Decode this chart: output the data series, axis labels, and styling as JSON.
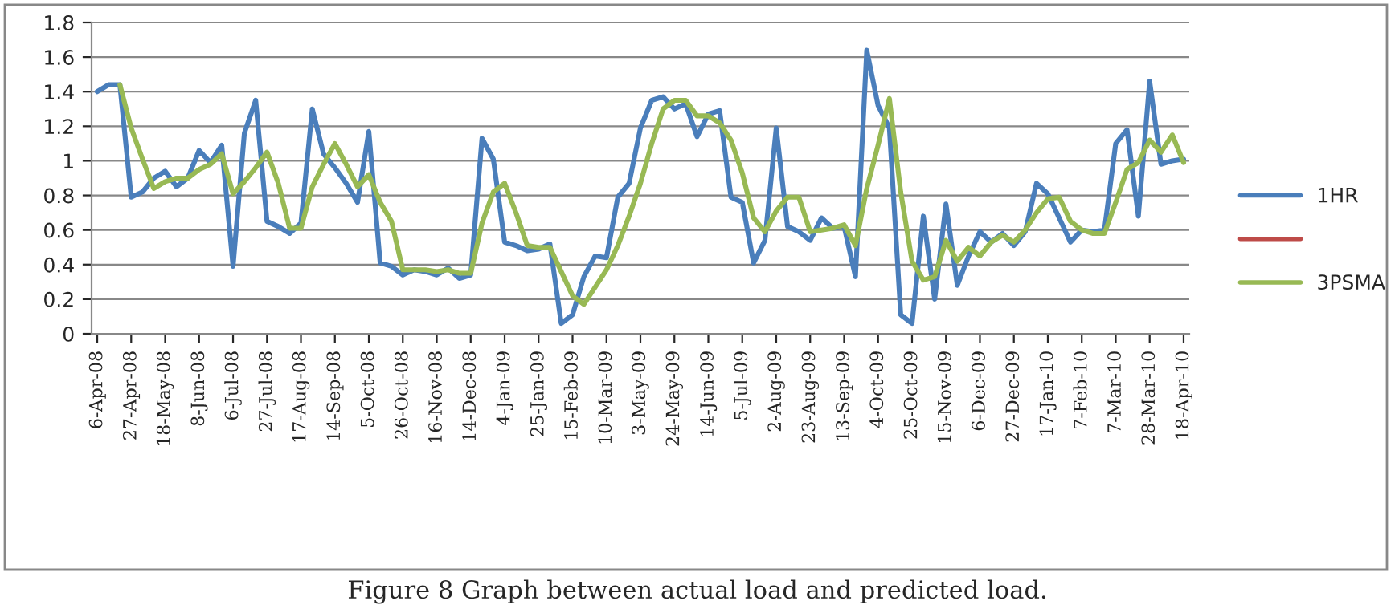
{
  "chart_data": {
    "type": "line",
    "categories": [
      "6-Apr-08",
      null,
      null,
      "27-Apr-08",
      null,
      null,
      "18-May-08",
      null,
      null,
      "8-Jun-08",
      null,
      null,
      "6-Jul-08",
      null,
      null,
      "27-Jul-08",
      null,
      null,
      "17-Aug-08",
      null,
      null,
      "14-Sep-08",
      null,
      null,
      "5-Oct-08",
      null,
      null,
      "26-Oct-08",
      null,
      null,
      "16-Nov-08",
      null,
      null,
      "14-Dec-08",
      null,
      null,
      "4-Jan-09",
      null,
      null,
      "25-Jan-09",
      null,
      null,
      "15-Feb-09",
      null,
      null,
      "10-Mar-09",
      null,
      null,
      "3-May-09",
      null,
      null,
      "24-May-09",
      null,
      null,
      "14-Jun-09",
      null,
      null,
      "5-Jul-09",
      null,
      null,
      "2-Aug-09",
      null,
      null,
      "23-Aug-09",
      null,
      null,
      "13-Sep-09",
      null,
      null,
      "4-Oct-09",
      null,
      null,
      "25-Oct-09",
      null,
      null,
      "15-Nov-09",
      null,
      null,
      "6-Dec-09",
      null,
      null,
      "27-Dec-09",
      null,
      null,
      "17-Jan-10",
      null,
      null,
      "7-Feb-10",
      null,
      null,
      "7-Mar-10",
      null,
      null,
      "28-Mar-10",
      null,
      null,
      "18-Apr-10"
    ],
    "series": [
      {
        "name": "1HR",
        "color": "#4a7ebb",
        "values": [
          1.4,
          1.44,
          1.44,
          0.79,
          0.82,
          0.9,
          0.94,
          0.85,
          0.9,
          1.06,
          0.99,
          1.09,
          0.39,
          1.16,
          1.35,
          0.65,
          0.62,
          0.58,
          0.64,
          1.3,
          1.04,
          0.96,
          0.87,
          0.76,
          1.17,
          0.41,
          0.39,
          0.34,
          0.37,
          0.36,
          0.34,
          0.38,
          0.32,
          0.34,
          1.13,
          1.01,
          0.53,
          0.51,
          0.48,
          0.49,
          0.52,
          0.06,
          0.11,
          0.33,
          0.45,
          0.44,
          0.79,
          0.87,
          1.19,
          1.35,
          1.37,
          1.3,
          1.33,
          1.14,
          1.27,
          1.29,
          0.79,
          0.76,
          0.41,
          0.54,
          1.19,
          0.62,
          0.59,
          0.54,
          0.67,
          0.61,
          0.62,
          0.33,
          1.64,
          1.32,
          1.19,
          0.11,
          0.06,
          0.68,
          0.2,
          0.75,
          0.28,
          0.45,
          0.59,
          0.53,
          0.58,
          0.51,
          0.59,
          0.87,
          0.81,
          0.67,
          0.53,
          0.6,
          0.59,
          0.6,
          1.1,
          1.18,
          0.68,
          1.46,
          0.98,
          1.0,
          1.01
        ]
      },
      {
        "name": null,
        "color": "#be4b48",
        "values": [
          null,
          null,
          null,
          null,
          null,
          null,
          null,
          null,
          null,
          null,
          null,
          null,
          null,
          null,
          null,
          null,
          null,
          null,
          null,
          null,
          null,
          null,
          null,
          null,
          null,
          null,
          null,
          null,
          null,
          null,
          null,
          null,
          null,
          null,
          null,
          null,
          null,
          null,
          null,
          null,
          null,
          null,
          null,
          null,
          null,
          null,
          null,
          null,
          null,
          null,
          null,
          null,
          null,
          null,
          null,
          null,
          null,
          null,
          null,
          null,
          null,
          null,
          null,
          null,
          null,
          null,
          null,
          null,
          null,
          null,
          null,
          null,
          null,
          null,
          null,
          null,
          null,
          null,
          null,
          null,
          null,
          null,
          null,
          null,
          null,
          null,
          null,
          null,
          null,
          null,
          null,
          null,
          null,
          null,
          null,
          null,
          null
        ]
      },
      {
        "name": "3PSMA",
        "color": "#98b954",
        "values": [
          null,
          null,
          1.44,
          1.19,
          1.01,
          0.84,
          0.88,
          0.9,
          0.9,
          0.95,
          0.98,
          1.04,
          0.81,
          0.88,
          0.96,
          1.05,
          0.87,
          0.61,
          0.61,
          0.85,
          0.98,
          1.1,
          0.98,
          0.85,
          0.92,
          0.76,
          0.65,
          0.37,
          0.37,
          0.37,
          0.36,
          0.37,
          0.35,
          0.35,
          0.64,
          0.82,
          0.87,
          0.7,
          0.51,
          0.5,
          0.5,
          0.36,
          0.22,
          0.17,
          0.27,
          0.37,
          0.51,
          0.68,
          0.87,
          1.1,
          1.3,
          1.35,
          1.35,
          1.26,
          1.26,
          1.22,
          1.12,
          0.93,
          0.67,
          0.59,
          0.71,
          0.79,
          0.79,
          0.59,
          0.6,
          0.61,
          0.63,
          0.51,
          0.84,
          1.09,
          1.36,
          0.82,
          0.42,
          0.31,
          0.33,
          0.54,
          0.42,
          0.5,
          0.45,
          0.53,
          0.57,
          0.53,
          0.6,
          0.7,
          0.78,
          0.79,
          0.65,
          0.6,
          0.58,
          0.58,
          0.76,
          0.95,
          0.99,
          1.12,
          1.05,
          1.15,
          0.99
        ]
      }
    ],
    "ylim": [
      0,
      1.8
    ],
    "yticks": [
      0,
      0.2,
      0.4,
      0.6,
      0.8,
      1,
      1.2,
      1.4,
      1.6,
      1.8
    ],
    "grid": "y",
    "legend": "right",
    "marker": "none",
    "line_style": "solid",
    "annotations": [
      "Figure 8 Graph between actual load and predicted load."
    ]
  }
}
